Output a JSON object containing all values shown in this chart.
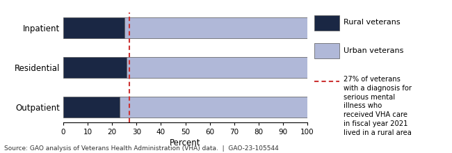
{
  "categories": [
    "Outpatient",
    "Residential",
    "Inpatient"
  ],
  "rural_values": [
    23,
    26,
    25
  ],
  "urban_values": [
    77,
    74,
    75
  ],
  "rural_color": "#1a2744",
  "urban_color": "#b0b8d8",
  "vline_x": 27,
  "vline_color": "#cc3333",
  "xlim": [
    0,
    100
  ],
  "xticks": [
    0,
    10,
    20,
    30,
    40,
    50,
    60,
    70,
    80,
    90,
    100
  ],
  "xlabel": "Percent",
  "legend_rural": "Rural veterans",
  "legend_urban": "Urban veterans",
  "legend_note": "27% of veterans\nwith a diagnosis for\nserious mental\nillness who\nreceived VHA care\nin fiscal year 2021\nlived in a rural area",
  "source_text": "Source: GAO analysis of Veterans Health Administration (VHA) data.  |  GAO-23-105544",
  "bar_height": 0.52,
  "edge_color": "#555555"
}
